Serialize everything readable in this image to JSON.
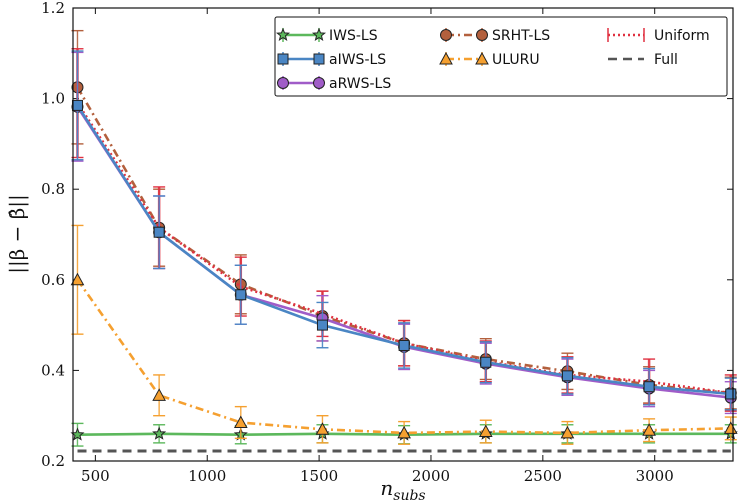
{
  "chart_data": {
    "type": "line",
    "title": "",
    "xlabel": "n_subs",
    "ylabel": "||β − β̂||",
    "xlim": [
      400,
      3350
    ],
    "ylim": [
      0.2,
      1.2
    ],
    "xticks": [
      500,
      1000,
      1500,
      2000,
      2500,
      3000
    ],
    "yticks": [
      0.2,
      0.4,
      0.6,
      0.8,
      1.0,
      1.2
    ],
    "ytick_labels": [
      "0.2",
      "0.4",
      "0.6",
      "0.8",
      "1.0",
      "1.2"
    ],
    "grid": false,
    "legend_position": "top-right",
    "x": [
      420,
      785,
      1150,
      1515,
      1880,
      2245,
      2610,
      2975,
      3340
    ],
    "series": [
      {
        "name": "IWS-LS",
        "color": "#5cb85c",
        "marker": "star",
        "dash": "solid",
        "values": [
          0.258,
          0.26,
          0.258,
          0.26,
          0.258,
          0.26,
          0.26,
          0.26,
          0.26
        ],
        "errors": [
          0.025,
          0.02,
          0.02,
          0.02,
          0.02,
          0.02,
          0.02,
          0.02,
          0.02
        ]
      },
      {
        "name": "aIWS-LS",
        "color": "#4a86c4",
        "marker": "square",
        "dash": "solid",
        "values": [
          0.985,
          0.705,
          0.567,
          0.5,
          0.455,
          0.418,
          0.388,
          0.364,
          0.348
        ],
        "errors": [
          0.12,
          0.08,
          0.065,
          0.05,
          0.05,
          0.045,
          0.04,
          0.04,
          0.035
        ]
      },
      {
        "name": "aRWS-LS",
        "color": "#a05cc8",
        "marker": "circle",
        "dash": "solid",
        "values": [
          0.982,
          0.705,
          0.567,
          0.515,
          0.452,
          0.415,
          0.385,
          0.36,
          0.34
        ],
        "errors": [
          0.12,
          0.08,
          0.065,
          0.05,
          0.05,
          0.045,
          0.04,
          0.04,
          0.035
        ]
      },
      {
        "name": "SRHT-LS",
        "color": "#b3603d",
        "marker": "circle",
        "dash": "dashdot",
        "values": [
          1.025,
          0.715,
          0.59,
          0.52,
          0.46,
          0.425,
          0.398,
          0.368,
          0.35
        ],
        "errors": [
          0.125,
          0.085,
          0.065,
          0.055,
          0.05,
          0.045,
          0.04,
          0.04,
          0.035
        ]
      },
      {
        "name": "ULURU",
        "color": "#f5a030",
        "marker": "triangle",
        "dash": "dashdot",
        "values": [
          0.6,
          0.345,
          0.285,
          0.27,
          0.262,
          0.265,
          0.262,
          0.268,
          0.272
        ],
        "errors": [
          0.12,
          0.045,
          0.035,
          0.03,
          0.025,
          0.025,
          0.025,
          0.025,
          0.025
        ]
      },
      {
        "name": "Uniform",
        "color": "#e03040",
        "marker": "none",
        "dash": "dotted",
        "values": [
          0.99,
          0.715,
          0.585,
          0.525,
          0.46,
          0.42,
          0.39,
          0.375,
          0.35
        ],
        "errors": [
          0.12,
          0.09,
          0.065,
          0.05,
          0.05,
          0.045,
          0.04,
          0.05,
          0.04
        ]
      },
      {
        "name": "Full",
        "color": "#555555",
        "marker": "none",
        "dash": "dashed",
        "values": [
          0.222,
          0.222,
          0.222,
          0.222,
          0.222,
          0.222,
          0.222,
          0.222,
          0.222
        ],
        "errors": [
          0,
          0,
          0,
          0,
          0,
          0,
          0,
          0,
          0
        ]
      }
    ]
  }
}
